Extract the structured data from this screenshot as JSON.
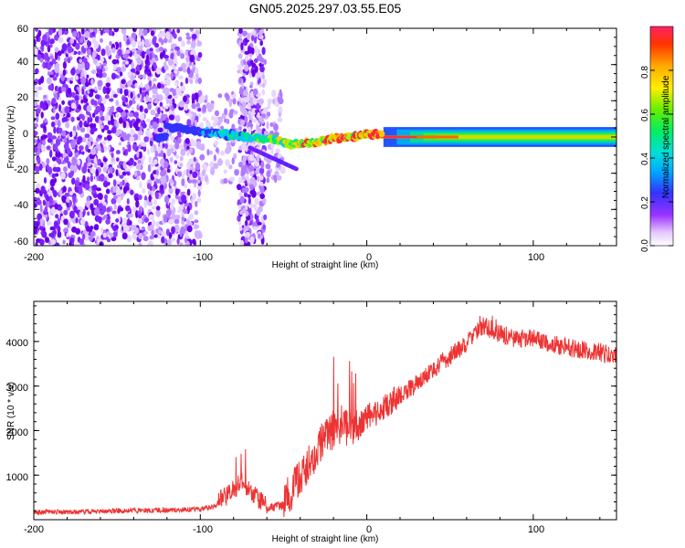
{
  "title": "GN05.2025.297.03.55.E05",
  "chart_data": [
    {
      "type": "heatmap",
      "title": "GN05.2025.297.03.55.E05",
      "xlabel": "Height of straight line (km)",
      "ylabel": "Frequency (Hz)",
      "xlim": [
        -200,
        150
      ],
      "ylim": [
        -60,
        60
      ],
      "xticks": [
        "-200",
        "-100",
        "0",
        "100"
      ],
      "yticks": [
        "-60",
        "-40",
        "-20",
        "0",
        "20",
        "40",
        "60"
      ],
      "colorbar": {
        "label": "Normalized spectral amplitude",
        "range": [
          0,
          1
        ],
        "ticks": [
          "0.0",
          "0.2",
          "0.4",
          "0.6",
          "0.8"
        ]
      },
      "ridge": [
        {
          "x": -120,
          "y": 6
        },
        {
          "x": -100,
          "y": 3
        },
        {
          "x": -80,
          "y": 1
        },
        {
          "x": -60,
          "y": -1
        },
        {
          "x": -45,
          "y": -4
        },
        {
          "x": -30,
          "y": -3
        },
        {
          "x": -20,
          "y": -1
        },
        {
          "x": -10,
          "y": 0
        },
        {
          "x": 0,
          "y": 2
        },
        {
          "x": 20,
          "y": 0
        },
        {
          "x": 60,
          "y": 0
        },
        {
          "x": 150,
          "y": 0
        }
      ]
    },
    {
      "type": "line",
      "xlabel": "Height of straight line (km)",
      "ylabel": "SNR (10 * v/v)",
      "xlim": [
        -200,
        150
      ],
      "ylim": [
        0,
        4900
      ],
      "xticks": [
        "-200",
        "-100",
        "0",
        "100"
      ],
      "yticks": [
        "1000",
        "2000",
        "3000",
        "4000"
      ],
      "series": [
        {
          "name": "SNR",
          "color": "#ee3333",
          "x": [
            -200,
            -180,
            -160,
            -140,
            -120,
            -100,
            -90,
            -80,
            -75,
            -70,
            -65,
            -60,
            -55,
            -50,
            -45,
            -40,
            -35,
            -30,
            -25,
            -20,
            -15,
            -10,
            -5,
            0,
            10,
            20,
            30,
            40,
            50,
            60,
            70,
            80,
            90,
            100,
            110,
            120,
            130,
            140,
            150
          ],
          "y": [
            150,
            160,
            170,
            190,
            200,
            220,
            300,
            600,
            800,
            600,
            400,
            250,
            250,
            300,
            500,
            800,
            1100,
            1400,
            1700,
            1900,
            2000,
            1900,
            2000,
            2200,
            2400,
            2700,
            3000,
            3300,
            3600,
            3900,
            4300,
            4100,
            4000,
            4000,
            3900,
            3800,
            3750,
            3700,
            3600
          ]
        }
      ]
    }
  ]
}
